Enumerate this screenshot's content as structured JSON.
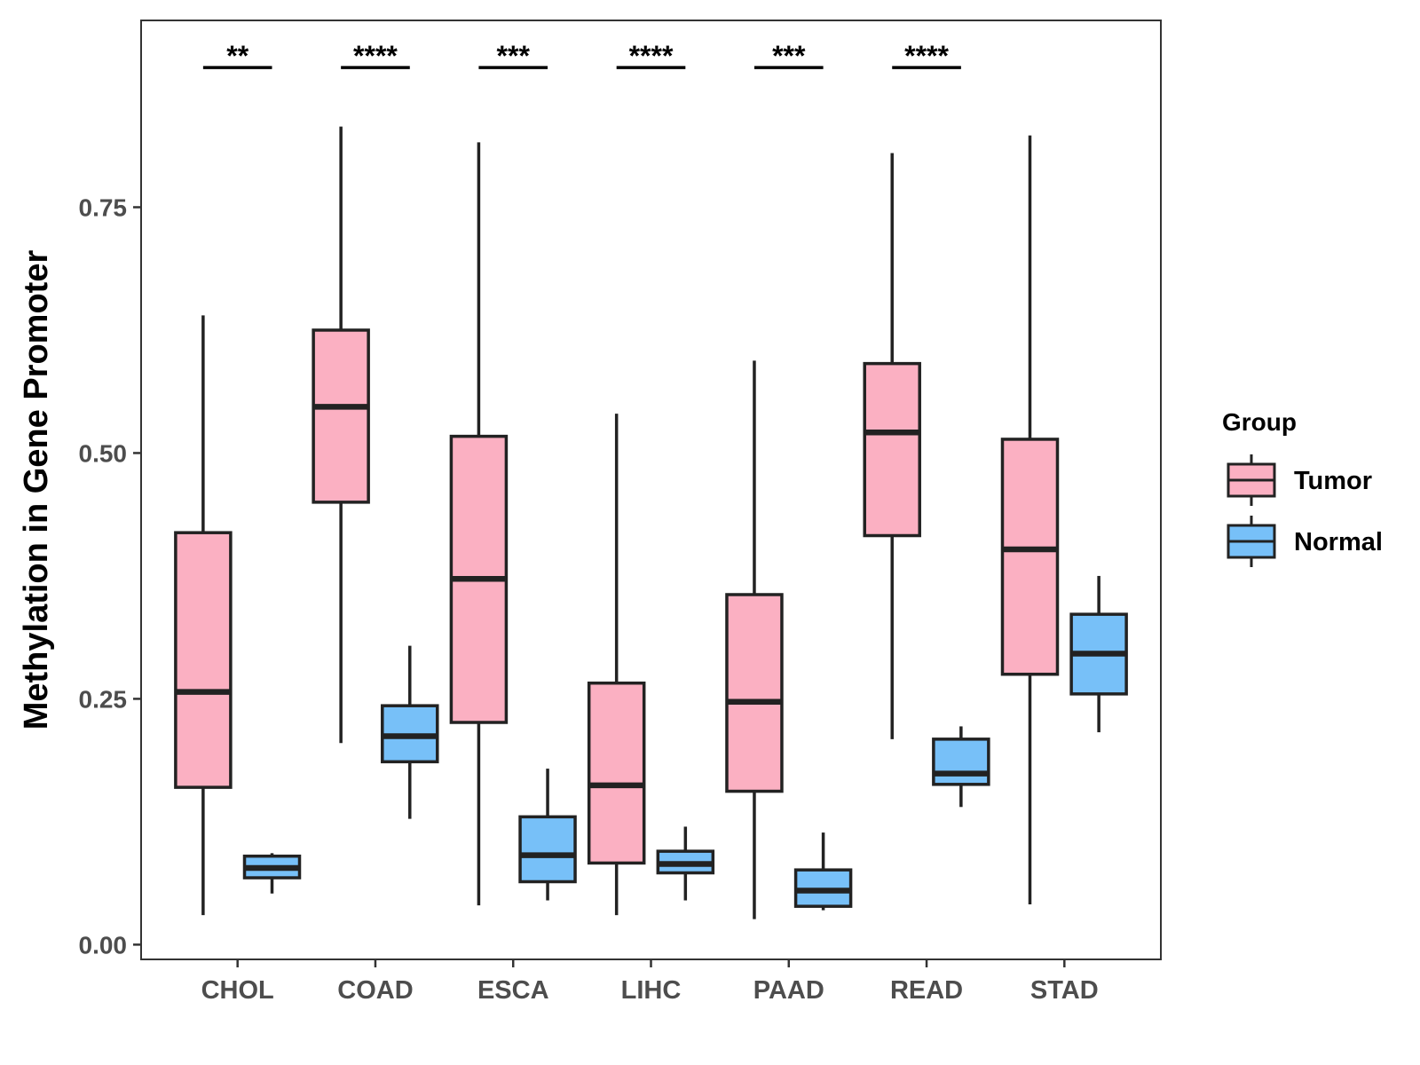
{
  "chart_data": {
    "type": "boxplot",
    "title": "",
    "xlabel": "",
    "ylabel": "Methylation in Gene Promoter",
    "ylim": [
      -0.015,
      0.94
    ],
    "yticks": [
      0.0,
      0.25,
      0.5,
      0.75
    ],
    "ytick_labels": [
      "0.00",
      "0.25",
      "0.50",
      "0.75"
    ],
    "grid": false,
    "categories": [
      "CHOL",
      "COAD",
      "ESCA",
      "LIHC",
      "PAAD",
      "READ",
      "STAD"
    ],
    "legend": {
      "title": "Group",
      "position": "right",
      "entries": [
        {
          "name": "Tumor",
          "color": "#fbb0c2"
        },
        {
          "name": "Normal",
          "color": "#77c0f8"
        }
      ]
    },
    "series": [
      {
        "name": "Tumor",
        "color": "#fbb0c2",
        "boxes": [
          {
            "min": 0.03,
            "q1": 0.16,
            "median": 0.257,
            "q3": 0.419,
            "max": 0.64
          },
          {
            "min": 0.205,
            "q1": 0.45,
            "median": 0.547,
            "q3": 0.625,
            "max": 0.832
          },
          {
            "min": 0.04,
            "q1": 0.226,
            "median": 0.372,
            "q3": 0.517,
            "max": 0.816
          },
          {
            "min": 0.03,
            "q1": 0.083,
            "median": 0.162,
            "q3": 0.266,
            "max": 0.54
          },
          {
            "min": 0.026,
            "q1": 0.156,
            "median": 0.247,
            "q3": 0.356,
            "max": 0.594
          },
          {
            "min": 0.209,
            "q1": 0.416,
            "median": 0.521,
            "q3": 0.591,
            "max": 0.805
          },
          {
            "min": 0.041,
            "q1": 0.275,
            "median": 0.402,
            "q3": 0.514,
            "max": 0.823
          }
        ]
      },
      {
        "name": "Normal",
        "color": "#77c0f8",
        "boxes": [
          {
            "min": 0.052,
            "q1": 0.068,
            "median": 0.078,
            "q3": 0.09,
            "max": 0.093
          },
          {
            "min": 0.128,
            "q1": 0.186,
            "median": 0.212,
            "q3": 0.243,
            "max": 0.304
          },
          {
            "min": 0.045,
            "q1": 0.064,
            "median": 0.091,
            "q3": 0.13,
            "max": 0.179
          },
          {
            "min": 0.045,
            "q1": 0.073,
            "median": 0.082,
            "q3": 0.095,
            "max": 0.12
          },
          {
            "min": 0.035,
            "q1": 0.039,
            "median": 0.055,
            "q3": 0.076,
            "max": 0.114
          },
          {
            "min": 0.14,
            "q1": 0.163,
            "median": 0.174,
            "q3": 0.209,
            "max": 0.222
          },
          {
            "min": 0.216,
            "q1": 0.255,
            "median": 0.296,
            "q3": 0.336,
            "max": 0.375
          }
        ]
      }
    ],
    "significance": [
      "**",
      "****",
      "***",
      "****",
      "***",
      "****",
      ""
    ],
    "significance_y": 0.892
  }
}
